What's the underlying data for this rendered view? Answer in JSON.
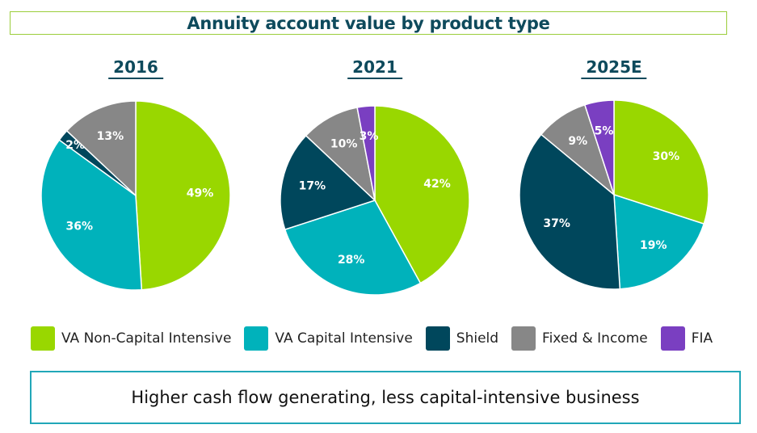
{
  "title": "Annuity account value by product type",
  "colors": {
    "VA Non-Capital Intensive": "#99d700",
    "VA Capital Intensive": "#00b2bb",
    "Shield": "#00475c",
    "Fixed & Income": "#878787",
    "FIA": "#7a3fc1"
  },
  "chart_data": [
    {
      "type": "pie",
      "title": "2016",
      "categories": [
        "VA Non-Capital Intensive",
        "VA Capital Intensive",
        "Shield",
        "Fixed & Income"
      ],
      "values": [
        49,
        36,
        2,
        13
      ],
      "labels": [
        "49%",
        "36%",
        "2%",
        "13%"
      ]
    },
    {
      "type": "pie",
      "title": "2021",
      "categories": [
        "VA Non-Capital Intensive",
        "VA Capital Intensive",
        "Shield",
        "Fixed & Income",
        "FIA"
      ],
      "values": [
        42,
        28,
        17,
        10,
        3
      ],
      "labels": [
        "42%",
        "28%",
        "17%",
        "10%",
        "3%"
      ]
    },
    {
      "type": "pie",
      "title": "2025E",
      "categories": [
        "VA Non-Capital Intensive",
        "VA Capital Intensive",
        "Shield",
        "Fixed & Income",
        "FIA"
      ],
      "values": [
        30,
        19,
        37,
        9,
        5
      ],
      "labels": [
        "30%",
        "19%",
        "37%",
        "9%",
        "5%"
      ]
    }
  ],
  "legend": {
    "items": [
      {
        "label": "VA Non-Capital Intensive",
        "color": "#99d700"
      },
      {
        "label": "VA Capital Intensive",
        "color": "#00b2bb"
      },
      {
        "label": "Shield",
        "color": "#00475c"
      },
      {
        "label": "Fixed & Income",
        "color": "#878787"
      },
      {
        "label": "FIA",
        "color": "#7a3fc1"
      }
    ]
  },
  "footer": {
    "text": "Higher cash flow generating, less capital-intensive business"
  }
}
